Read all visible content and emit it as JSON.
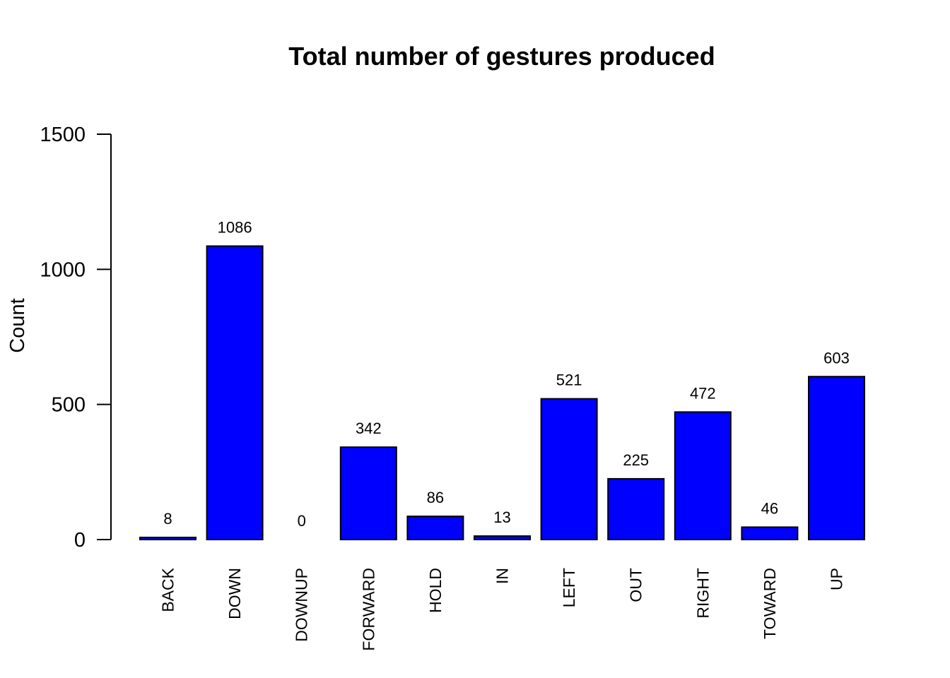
{
  "chart_data": {
    "type": "bar",
    "title": "Total number of gestures produced",
    "xlabel": "",
    "ylabel": "Count",
    "categories": [
      "BACK",
      "DOWN",
      "DOWNUP",
      "FORWARD",
      "HOLD",
      "IN",
      "LEFT",
      "OUT",
      "RIGHT",
      "TOWARD",
      "UP"
    ],
    "values": [
      8,
      1086,
      0,
      342,
      86,
      13,
      521,
      225,
      472,
      46,
      603
    ],
    "data_labels": [
      "8",
      "1086",
      "0",
      "342",
      "86",
      "13",
      "521",
      "225",
      "472",
      "46",
      "603"
    ],
    "ylim": [
      0,
      1500
    ],
    "yticks": [
      0,
      500,
      1000,
      1500
    ],
    "ytick_labels": [
      "0",
      "500",
      "1000",
      "1500"
    ],
    "bar_color": "#0000ff",
    "bar_edge_color": "#000000",
    "grid": false,
    "legend": "none"
  }
}
